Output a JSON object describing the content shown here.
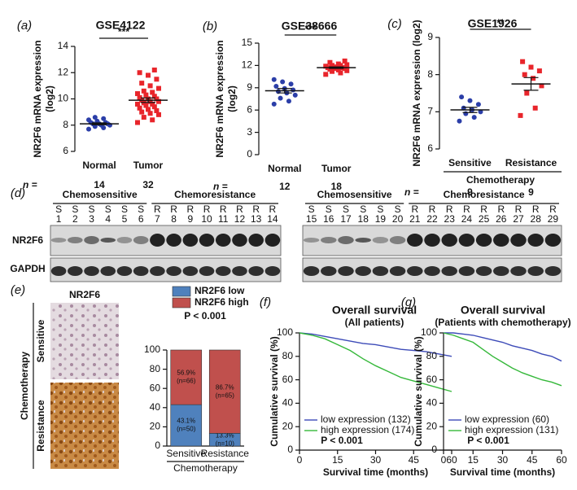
{
  "chart_data": [
    {
      "type": "dot",
      "panel": "(a)",
      "title": "GSE4122",
      "y_label": [
        "NR2F6 mRNA expression",
        "(log2)"
      ],
      "categories": [
        "Normal",
        "Tumor"
      ],
      "colors": [
        "#2b3ea8",
        "#e8252b"
      ],
      "markers": [
        "circle",
        "square"
      ],
      "values": [
        [
          7.7,
          7.8,
          7.9,
          8.0,
          8.0,
          8.1,
          8.1,
          8.1,
          8.2,
          8.2,
          8.3,
          8.4,
          8.5,
          8.6
        ],
        [
          8.2,
          8.4,
          8.6,
          8.8,
          8.9,
          9.0,
          9.1,
          9.2,
          9.3,
          9.4,
          9.5,
          9.6,
          9.6,
          9.7,
          9.8,
          9.8,
          9.9,
          10.0,
          10.0,
          10.1,
          10.2,
          10.3,
          10.4,
          10.5,
          10.6,
          10.8,
          11.0,
          11.2,
          11.5,
          11.8,
          12.0,
          12.2
        ]
      ],
      "means": [
        8.1,
        9.9
      ],
      "sems": [
        0.07,
        0.17
      ],
      "significance": "***",
      "n_label": "n =",
      "n": [
        14,
        32
      ],
      "ylim": [
        6,
        14
      ],
      "yticks": [
        6,
        8,
        10,
        12,
        14
      ]
    },
    {
      "type": "dot",
      "panel": "(b)",
      "title": "GSE38666",
      "y_label": [
        "NR2F6 mRNA expression",
        "(log2)"
      ],
      "categories": [
        "Normal",
        "Tumor"
      ],
      "colors": [
        "#2b3ea8",
        "#e8252b"
      ],
      "markers": [
        "circle",
        "square"
      ],
      "values": [
        [
          6.8,
          7.2,
          7.6,
          8.0,
          8.3,
          8.5,
          8.7,
          8.9,
          9.2,
          9.5,
          9.8,
          10.1
        ],
        [
          10.8,
          11.0,
          11.2,
          11.3,
          11.4,
          11.5,
          11.6,
          11.6,
          11.7,
          11.7,
          11.8,
          11.9,
          12.0,
          12.0,
          12.1,
          12.2,
          12.4,
          12.6
        ]
      ],
      "means": [
        8.6,
        11.7
      ],
      "sems": [
        0.3,
        0.1
      ],
      "significance": "***",
      "n_label": "n =",
      "n": [
        12,
        18
      ],
      "ylim": [
        0,
        15
      ],
      "yticks": [
        0,
        3,
        6,
        9,
        12,
        15
      ]
    },
    {
      "type": "dot",
      "panel": "(c)",
      "title": "GSE1926",
      "y_label": "NR2F6 mRNA expression (log2)",
      "categories": [
        "Sensitive",
        "Resistance"
      ],
      "x_label": "Chemotherapy",
      "colors": [
        "#2b3ea8",
        "#e8252b"
      ],
      "markers": [
        "circle",
        "square"
      ],
      "values": [
        [
          6.75,
          6.85,
          6.95,
          7.0,
          7.05,
          7.1,
          7.2,
          7.3,
          7.4
        ],
        [
          6.9,
          7.1,
          7.5,
          7.7,
          7.9,
          8.0,
          8.1,
          8.2,
          8.35
        ]
      ],
      "means": [
        7.05,
        7.75
      ],
      "sems": [
        0.07,
        0.17
      ],
      "significance": "**",
      "n_label": "n =",
      "n": [
        9,
        9
      ],
      "ylim": [
        6,
        9
      ],
      "yticks": [
        6,
        7,
        8,
        9
      ]
    },
    {
      "type": "stacked-bar",
      "subtitle": "P < 0.001",
      "categories": [
        "Sensitive",
        "Resistance"
      ],
      "x_label": "Chemotherapy",
      "series": [
        {
          "name": "NR2F6 low",
          "color": "#4f81bd",
          "values": [
            43.1,
            13.3
          ],
          "value_labels": [
            "43.1%",
            "13.3%"
          ],
          "n_labels": [
            "(n=50)",
            "(n=10)"
          ]
        },
        {
          "name": "NR2F6 high",
          "color": "#c0504d",
          "values": [
            56.9,
            86.7
          ],
          "value_labels": [
            "56.9%",
            "86.7%"
          ],
          "n_labels": [
            "(n=66)",
            "(n=65)"
          ]
        }
      ],
      "ylim": [
        0,
        100
      ],
      "yticks": [
        0,
        20,
        40,
        60,
        80,
        100
      ]
    },
    {
      "type": "line",
      "panel": "(f)",
      "title": "Overall survival",
      "subtitle": "(All patients)",
      "x_label": "Survival time (months)",
      "y_label": "Cumulative survival (%)",
      "annotation": "P < 0.001",
      "x": [
        0,
        5,
        10,
        15,
        20,
        25,
        30,
        35,
        40,
        45,
        50,
        55,
        60
      ],
      "series": [
        {
          "name": "low expression (132)",
          "color": "#3d4bb8",
          "values": [
            100,
            99,
            97,
            95,
            93,
            91,
            90,
            88,
            86,
            85,
            84,
            82,
            80
          ]
        },
        {
          "name": "high expression (174)",
          "color": "#35b83a",
          "values": [
            100,
            98,
            95,
            90,
            85,
            78,
            72,
            67,
            62,
            59,
            56,
            53,
            50
          ]
        }
      ],
      "xlim": [
        0,
        60
      ],
      "xticks": [
        0,
        15,
        30,
        45,
        60
      ],
      "ylim": [
        0,
        100
      ],
      "yticks": [
        0,
        20,
        40,
        60,
        80,
        100
      ]
    },
    {
      "type": "line",
      "panel": "(g)",
      "title": "Overall survival",
      "subtitle": "(Patients with chemotherapy)",
      "x_label": "Survival time (months)",
      "y_label": "Cumulative survival (%)",
      "annotation": "P < 0.001",
      "x": [
        0,
        5,
        10,
        15,
        20,
        25,
        30,
        35,
        40,
        45,
        50,
        55,
        60
      ],
      "series": [
        {
          "name": "low expression (60)",
          "color": "#3d4bb8",
          "values": [
            100,
            100,
            99,
            98,
            96,
            94,
            92,
            89,
            87,
            85,
            82,
            80,
            76
          ]
        },
        {
          "name": "high expression (131)",
          "color": "#35b83a",
          "values": [
            100,
            98,
            95,
            92,
            86,
            80,
            75,
            70,
            66,
            63,
            60,
            58,
            55
          ]
        }
      ],
      "xlim": [
        0,
        60
      ],
      "xticks": [
        0,
        15,
        30,
        45,
        60
      ],
      "ylim": [
        0,
        100
      ],
      "yticks": [
        0,
        20,
        40,
        60,
        80,
        100
      ]
    }
  ],
  "blot": {
    "panel": "(d)",
    "proteins": [
      "NR2F6",
      "GAPDH"
    ],
    "gels": [
      {
        "groups": [
          {
            "label": "Chemosensitive",
            "lanes": [
              [
                "S",
                "1"
              ],
              [
                "S",
                "2"
              ],
              [
                "S",
                "3"
              ],
              [
                "S",
                "4"
              ],
              [
                "S",
                "5"
              ],
              [
                "S",
                "6"
              ]
            ]
          },
          {
            "label": "Chemoresistance",
            "lanes": [
              [
                "R",
                "7"
              ],
              [
                "R",
                "8"
              ],
              [
                "R",
                "9"
              ],
              [
                "R",
                "10"
              ],
              [
                "R",
                "11"
              ],
              [
                "R",
                "12"
              ],
              [
                "R",
                "13"
              ],
              [
                "R",
                "14"
              ]
            ]
          }
        ]
      },
      {
        "groups": [
          {
            "label": "Chemosensitive",
            "lanes": [
              [
                "S",
                "15"
              ],
              [
                "S",
                "16"
              ],
              [
                "S",
                "17"
              ],
              [
                "S",
                "18"
              ],
              [
                "S",
                "19"
              ],
              [
                "S",
                "20"
              ]
            ]
          },
          {
            "label": "Chemoresistance",
            "lanes": [
              [
                "R",
                "21"
              ],
              [
                "R",
                "22"
              ],
              [
                "R",
                "23"
              ],
              [
                "R",
                "24"
              ],
              [
                "R",
                "25"
              ],
              [
                "R",
                "26"
              ],
              [
                "R",
                "27"
              ],
              [
                "R",
                "28"
              ],
              [
                "R",
                "29"
              ]
            ]
          }
        ]
      }
    ]
  },
  "ihc": {
    "panel": "(e)",
    "title": "NR2F6",
    "rows": [
      "Sensitive",
      "Resistance"
    ],
    "group": "Chemotherapy"
  }
}
